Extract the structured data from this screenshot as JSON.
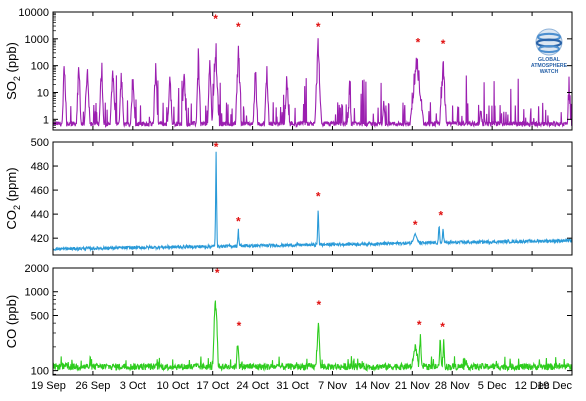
{
  "chart_data": [
    {
      "type": "line",
      "panel": "so2",
      "ylabel_main": "SO",
      "ylabel_sub": "2",
      "ylabel_unit": " (ppb)",
      "yscale": "log",
      "ylim": [
        0.4,
        10000
      ],
      "yticks": [
        1,
        10,
        100,
        1000,
        10000
      ],
      "ytick_labels": [
        "1",
        "10",
        "100",
        "1000",
        "10000"
      ],
      "color": "#9b1fb0",
      "baseline": 0.55,
      "spikes": [
        {
          "day": 2.0,
          "value": 400,
          "width": 0.4
        },
        {
          "day": 4.5,
          "value": 200,
          "width": 0.4
        },
        {
          "day": 6.0,
          "value": 150,
          "width": 0.5
        },
        {
          "day": 8.5,
          "value": 300,
          "width": 0.4
        },
        {
          "day": 10.5,
          "value": 150,
          "width": 0.5
        },
        {
          "day": 12.0,
          "value": 100,
          "width": 0.4
        },
        {
          "day": 14.0,
          "value": 80,
          "width": 0.4
        },
        {
          "day": 18.0,
          "value": 300,
          "width": 0.4
        },
        {
          "day": 20.5,
          "value": 120,
          "width": 0.4
        },
        {
          "day": 23.0,
          "value": 150,
          "width": 0.4
        },
        {
          "day": 25.5,
          "value": 700,
          "width": 0.4
        },
        {
          "day": 27.5,
          "value": 400,
          "width": 0.4
        },
        {
          "day": 28.5,
          "value": 3000,
          "width": 0.6
        },
        {
          "day": 32.5,
          "value": 1500,
          "width": 0.5
        },
        {
          "day": 35.5,
          "value": 200,
          "width": 0.4
        },
        {
          "day": 37.5,
          "value": 250,
          "width": 0.4
        },
        {
          "day": 41.0,
          "value": 100,
          "width": 0.4
        },
        {
          "day": 46.5,
          "value": 1500,
          "width": 0.6
        },
        {
          "day": 52.0,
          "value": 30,
          "width": 0.3
        },
        {
          "day": 58.0,
          "value": 5,
          "width": 0.3
        },
        {
          "day": 63.8,
          "value": 400,
          "width": 1.2
        },
        {
          "day": 68.4,
          "value": 350,
          "width": 0.6
        },
        {
          "day": 75.0,
          "value": 3,
          "width": 0.3
        },
        {
          "day": 90.5,
          "value": 20,
          "width": 0.3
        }
      ],
      "markers_days": [
        28.5,
        32.5,
        46.5,
        64.0,
        68.4
      ]
    },
    {
      "type": "line",
      "panel": "co2",
      "ylabel_main": "CO",
      "ylabel_sub": "2",
      "ylabel_unit": " (ppm)",
      "yscale": "linear",
      "ylim": [
        406,
        500
      ],
      "yticks": [
        420,
        440,
        460,
        480,
        500
      ],
      "ytick_labels": [
        "420",
        "440",
        "460",
        "480",
        "500"
      ],
      "color": "#2a9ad8",
      "baseline": 411,
      "trend_end": 418,
      "spikes": [
        {
          "day": 28.6,
          "value": 493,
          "width": 0.25
        },
        {
          "day": 32.5,
          "value": 428,
          "width": 0.25
        },
        {
          "day": 46.5,
          "value": 449,
          "width": 0.25
        },
        {
          "day": 63.5,
          "value": 425,
          "width": 0.8
        },
        {
          "day": 67.7,
          "value": 433,
          "width": 0.25
        },
        {
          "day": 68.4,
          "value": 430,
          "width": 0.25
        }
      ],
      "markers_days": [
        28.6,
        32.5,
        46.5,
        63.5,
        68.0
      ]
    },
    {
      "type": "line",
      "panel": "co",
      "ylabel_main": "CO",
      "ylabel_sub": "",
      "ylabel_unit": " (ppb)",
      "yscale": "log",
      "ylim": [
        88,
        2000
      ],
      "yticks": [
        100,
        500,
        1000,
        2000
      ],
      "ytick_labels": [
        "100",
        "500",
        "1000",
        "2000"
      ],
      "color": "#2ecc1e",
      "baseline": 108,
      "spikes": [
        {
          "day": 28.5,
          "value": 1600,
          "width": 0.5
        },
        {
          "day": 32.4,
          "value": 300,
          "width": 0.3
        },
        {
          "day": 46.5,
          "value": 550,
          "width": 0.4
        },
        {
          "day": 63.5,
          "value": 230,
          "width": 0.6
        },
        {
          "day": 64.4,
          "value": 310,
          "width": 0.3
        },
        {
          "day": 67.9,
          "value": 290,
          "width": 0.25
        },
        {
          "day": 68.5,
          "value": 270,
          "width": 0.25
        }
      ],
      "markers_days": [
        28.8,
        32.6,
        46.6,
        64.2,
        68.3
      ]
    }
  ],
  "x_axis": {
    "xlim_days": [
      0,
      91
    ],
    "ticks": [
      {
        "day": 0,
        "label": "19 Sep"
      },
      {
        "day": 7,
        "label": "26 Sep"
      },
      {
        "day": 14,
        "label": "3 Oct"
      },
      {
        "day": 21,
        "label": "10 Oct"
      },
      {
        "day": 28,
        "label": "17 Oct"
      },
      {
        "day": 35,
        "label": "24 Oct"
      },
      {
        "day": 42,
        "label": "31 Oct"
      },
      {
        "day": 49,
        "label": "7 Nov"
      },
      {
        "day": 56,
        "label": "14 Nov"
      },
      {
        "day": 63,
        "label": "21 Nov"
      },
      {
        "day": 70,
        "label": "28 Nov"
      },
      {
        "day": 77,
        "label": "5 Dec"
      },
      {
        "day": 84,
        "label": "12 Dec"
      },
      {
        "day": 91,
        "label": "19 Dec"
      }
    ]
  },
  "marker_symbol": "*",
  "logo": {
    "line1": "GLOBAL",
    "line2": "ATMOSPHERE",
    "line3": "WATCH",
    "color": "#2a63a8"
  }
}
